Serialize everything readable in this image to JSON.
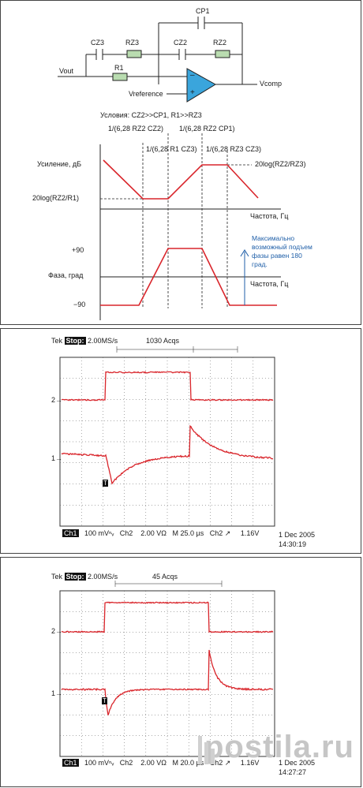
{
  "circuit": {
    "labels": {
      "cp1": "CP1",
      "cz3": "CZ3",
      "rz3": "RZ3",
      "cz2": "CZ2",
      "rz2": "RZ2",
      "r1": "R1",
      "vout": "Vout",
      "vref": "Vreference",
      "vcomp": "Vcomp",
      "minus": "–",
      "plus": "+"
    }
  },
  "bode": {
    "conditions": "Условия: CZ2>>CP1, R1>>RZ3",
    "f1": "1/(6,28 RZ2 CZ2)",
    "f2": "1/(6,28 RZ2 CP1)",
    "f3": "1/(6,28 R1 CZ3)",
    "f4": "1/(6,28 RZ3 CZ3)",
    "gain_label": "Усиление, дБ",
    "gain_low": "20log(RZ2/R1)",
    "gain_high": "20log(RZ2/RZ3)",
    "freq_label1": "Частота, Гц",
    "phase_label": "Фаза, град",
    "phase_plus": "+90",
    "phase_minus": "−90",
    "freq_label2": "Частота, Гц",
    "note": "Максимально возможный подъем фазы равен 180 град.",
    "colors": {
      "curve": "#d9252b",
      "note": "#1f5fa8",
      "arrow": "#1f5fa8"
    }
  },
  "scope1": {
    "tek": "Tek",
    "stop": "Stop:",
    "rate": "2.00MS/s",
    "acqs": "1030 Acqs",
    "ch1": "Ch1",
    "ch1_scale": "100 mVⁿᵥ",
    "ch2": "Ch2",
    "ch2_scale": "2.00 VΩ",
    "timebase": "M 25.0 µs",
    "trig": "Ch2 ↗",
    "level": "1.16V",
    "date": "1 Dec 2005",
    "time": "14:30:19",
    "marker2": "2→",
    "marker1": "1→",
    "trig_mark": "T"
  },
  "scope2": {
    "tek": "Tek",
    "stop": "Stop:",
    "rate": "2.00MS/s",
    "acqs": "45 Acqs",
    "ch1": "Ch1",
    "ch1_scale": "100 mVⁿᵥ",
    "ch2": "Ch2",
    "ch2_scale": "2.00 VΩ",
    "timebase": "M 20.0 µs",
    "trig": "Ch2 ↗",
    "level": "1.16V",
    "date": "1 Dec 2005",
    "time": "14:27:27",
    "marker2": "2→",
    "marker1": "1→",
    "trig_mark": "T"
  },
  "watermark": {
    "text": "postila.ru"
  }
}
